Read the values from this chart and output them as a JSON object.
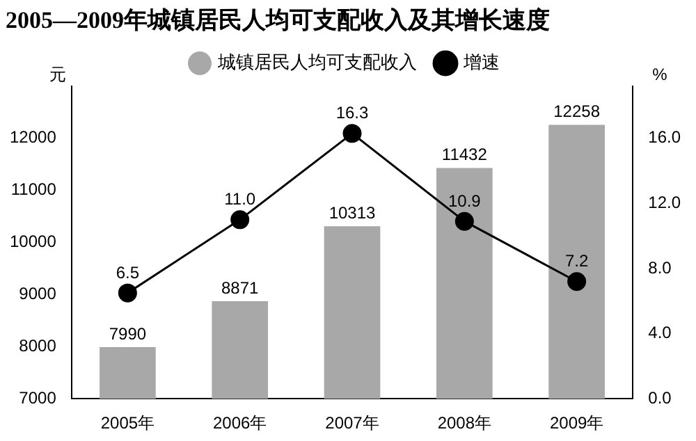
{
  "chart_data": {
    "type": "bar",
    "title": "2005—2009年城镇居民人均可支配收入及其增长速度",
    "ylabel": "元",
    "y2label": "%",
    "categories": [
      "2005年",
      "2006年",
      "2007年",
      "2008年",
      "2009年"
    ],
    "series": [
      {
        "name": "城镇居民人均可支配收入",
        "color": "#a8a8a8",
        "values": [
          7990,
          8871,
          10313,
          11432,
          12258
        ]
      },
      {
        "name": "增速",
        "type": "line",
        "axis": "y2",
        "color": "#000000",
        "values": [
          6.5,
          11.0,
          16.3,
          10.9,
          7.2
        ],
        "value_labels": [
          "6.5",
          "11.0",
          "16.3",
          "10.9",
          "7.2"
        ]
      }
    ],
    "ylim": [
      7000,
      13000
    ],
    "yticks": [
      7000,
      8000,
      9000,
      10000,
      11000,
      12000
    ],
    "y2lim": [
      0,
      19.2
    ],
    "y2ticks": [
      {
        "value": 0,
        "label": "0.0"
      },
      {
        "value": 4,
        "label": "4.0"
      },
      {
        "value": 8,
        "label": "8.0"
      },
      {
        "value": 12,
        "label": "12.0"
      },
      {
        "value": 16,
        "label": "16.0"
      }
    ],
    "data_labels": true,
    "legend": "top",
    "marker": "circle",
    "grid": false
  }
}
